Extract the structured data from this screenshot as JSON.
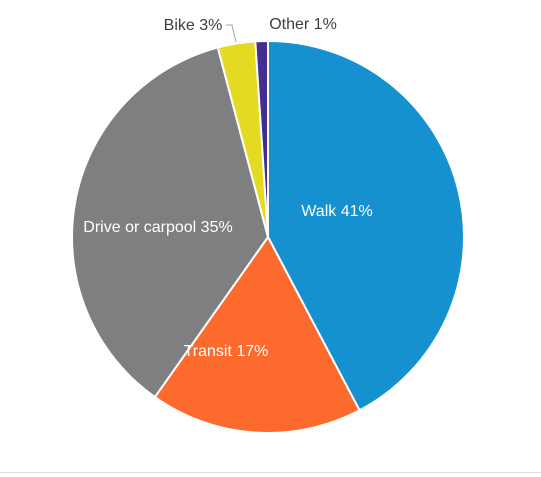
{
  "chart_data": {
    "type": "pie",
    "title": "",
    "slices": [
      {
        "label": "Walk",
        "value": 41,
        "display": "Walk 41%",
        "color": "#1591d0",
        "label_color": "#ffffff",
        "label_placement": "inside"
      },
      {
        "label": "Transit",
        "value": 17,
        "display": "Transit 17%",
        "color": "#fd6a2d",
        "label_color": "#ffffff",
        "label_placement": "inside"
      },
      {
        "label": "Drive or carpool",
        "value": 35,
        "display": "Drive or carpool 35%",
        "color": "#7f7f81",
        "label_color": "#ffffff",
        "label_placement": "inside"
      },
      {
        "label": "Bike",
        "value": 3,
        "display": "Bike 3%",
        "color": "#e3da21",
        "label_color": "#404040",
        "label_placement": "outside"
      },
      {
        "label": "Other",
        "value": 1,
        "display": "Other 1%",
        "color": "#432e91",
        "label_color": "#404040",
        "label_placement": "outside"
      }
    ],
    "start_angle": "12 o'clock",
    "direction": "clockwise",
    "legend": "none"
  }
}
